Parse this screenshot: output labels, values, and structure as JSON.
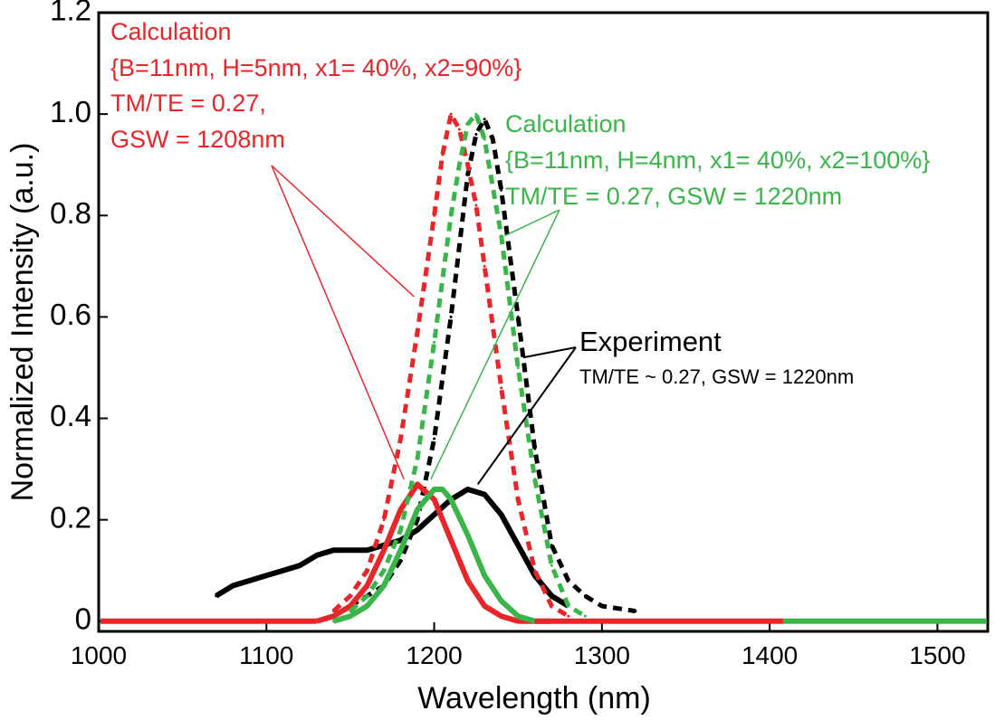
{
  "chart_data": {
    "type": "line",
    "xlabel": "Wavelength (nm)",
    "ylabel": "Normalized Intensity (a.u.)",
    "xlim": [
      1000,
      1530
    ],
    "ylim": [
      -0.02,
      1.2
    ],
    "x_ticks": [
      1000,
      1100,
      1200,
      1300,
      1400,
      1500
    ],
    "x_tick_labels": [
      "1000",
      "1100",
      "1200",
      "1300",
      "1400",
      "1500"
    ],
    "y_ticks": [
      0,
      0.2,
      0.4,
      0.6,
      0.8,
      1.0,
      1.2
    ],
    "y_tick_labels": [
      "0",
      "0.2",
      "0.4",
      "0.6",
      "0.8",
      "1.0",
      "1.2"
    ],
    "colors": {
      "red": "#e8262a",
      "green": "#3ab54a",
      "black": "#000000"
    },
    "series": [
      {
        "name": "Experiment TM (dashed)",
        "color": "#000000",
        "style": "dashed",
        "x": [
          1150,
          1170,
          1180,
          1190,
          1200,
          1210,
          1215,
          1220,
          1225,
          1230,
          1235,
          1240,
          1250,
          1260,
          1270,
          1280,
          1290,
          1300,
          1320
        ],
        "y": [
          0.03,
          0.07,
          0.12,
          0.2,
          0.36,
          0.6,
          0.74,
          0.88,
          0.96,
          0.99,
          0.95,
          0.85,
          0.6,
          0.34,
          0.15,
          0.08,
          0.05,
          0.03,
          0.02
        ]
      },
      {
        "name": "Experiment TE (solid)",
        "color": "#000000",
        "style": "solid",
        "x": [
          1070,
          1080,
          1090,
          1100,
          1110,
          1120,
          1130,
          1140,
          1150,
          1160,
          1170,
          1180,
          1190,
          1200,
          1210,
          1220,
          1230,
          1240,
          1250,
          1260,
          1270,
          1280
        ],
        "y": [
          0.05,
          0.07,
          0.08,
          0.09,
          0.1,
          0.11,
          0.13,
          0.14,
          0.14,
          0.14,
          0.15,
          0.16,
          0.18,
          0.21,
          0.24,
          0.26,
          0.25,
          0.21,
          0.15,
          0.09,
          0.05,
          0.03
        ]
      },
      {
        "name": "Calculation (red) dashed",
        "color": "#e8262a",
        "style": "dashed",
        "x": [
          1140,
          1150,
          1160,
          1170,
          1180,
          1190,
          1200,
          1205,
          1210,
          1215,
          1220,
          1225,
          1230,
          1240,
          1250,
          1260,
          1270,
          1280
        ],
        "y": [
          0.02,
          0.05,
          0.1,
          0.2,
          0.36,
          0.57,
          0.8,
          0.92,
          1.0,
          0.97,
          0.9,
          0.82,
          0.7,
          0.46,
          0.24,
          0.1,
          0.03,
          0.01
        ]
      },
      {
        "name": "Calculation (red) solid",
        "color": "#e8262a",
        "style": "solid",
        "x": [
          1130,
          1140,
          1150,
          1160,
          1170,
          1180,
          1190,
          1200,
          1210,
          1220,
          1230,
          1240,
          1250,
          1260
        ],
        "y": [
          0.0,
          0.01,
          0.03,
          0.07,
          0.14,
          0.22,
          0.27,
          0.24,
          0.16,
          0.08,
          0.03,
          0.01,
          0.0,
          0.0
        ]
      },
      {
        "name": "Calculation (green) dashed",
        "color": "#3ab54a",
        "style": "dashed",
        "x": [
          1150,
          1160,
          1170,
          1180,
          1190,
          1200,
          1210,
          1215,
          1220,
          1225,
          1230,
          1240,
          1250,
          1260,
          1270,
          1280,
          1290
        ],
        "y": [
          0.02,
          0.05,
          0.1,
          0.18,
          0.32,
          0.55,
          0.8,
          0.9,
          0.98,
          1.0,
          0.95,
          0.76,
          0.5,
          0.28,
          0.11,
          0.03,
          0.01
        ]
      },
      {
        "name": "Calculation (green) solid",
        "color": "#3ab54a",
        "style": "solid",
        "x": [
          1140,
          1150,
          1160,
          1170,
          1180,
          1190,
          1200,
          1205,
          1210,
          1220,
          1230,
          1240,
          1250,
          1260,
          1270
        ],
        "y": [
          0.0,
          0.01,
          0.03,
          0.07,
          0.14,
          0.22,
          0.26,
          0.26,
          0.24,
          0.17,
          0.09,
          0.04,
          0.01,
          0.0,
          0.0
        ]
      }
    ],
    "annotations": {
      "red_title": "Calculation",
      "red_params": "{B=11nm, H=5nm, x1= 40%, x2=90%}",
      "red_tmte": "TM/TE = 0.27,",
      "red_gsw": "GSW = 1208nm",
      "green_title": "Calculation",
      "green_params": "{B=11nm, H=4nm, x1= 40%, x2=100%}",
      "green_tmte": "TM/TE = 0.27, GSW = 1220nm",
      "exp_title": "Experiment",
      "exp_sub": "TM/TE ~ 0.27, GSW = 1220nm"
    }
  }
}
